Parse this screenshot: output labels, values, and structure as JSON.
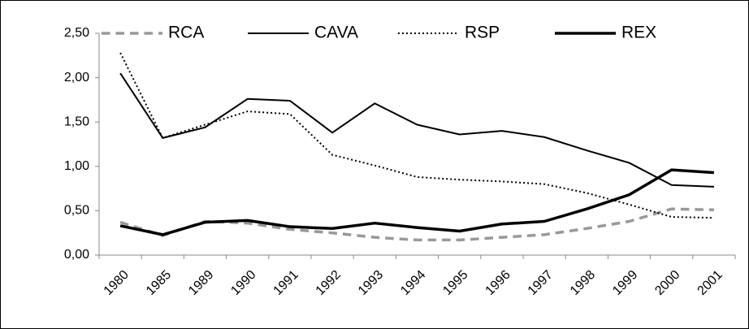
{
  "chart_data": {
    "type": "line",
    "categories": [
      "1980",
      "1985",
      "1989",
      "1990",
      "1991",
      "1992",
      "1993",
      "1994",
      "1995",
      "1996",
      "1997",
      "1998",
      "1999",
      "2000",
      "2001"
    ],
    "series": [
      {
        "name": "RCA",
        "color": "#999999",
        "line_style": "dashed",
        "line_width": 3.5,
        "values": [
          0.37,
          0.22,
          0.38,
          0.36,
          0.29,
          0.25,
          0.2,
          0.17,
          0.17,
          0.2,
          0.23,
          0.3,
          0.38,
          0.52,
          0.51
        ]
      },
      {
        "name": "CAVA",
        "color": "#000000",
        "line_style": "solid",
        "line_width": 2,
        "values": [
          2.05,
          1.32,
          1.44,
          1.76,
          1.74,
          1.38,
          1.71,
          1.47,
          1.36,
          1.4,
          1.33,
          1.18,
          1.04,
          0.79,
          0.77
        ]
      },
      {
        "name": "RSP",
        "color": "#000000",
        "line_style": "dotted",
        "line_width": 2,
        "values": [
          2.28,
          1.32,
          1.47,
          1.62,
          1.59,
          1.13,
          1.01,
          0.88,
          0.85,
          0.83,
          0.8,
          0.7,
          0.57,
          0.43,
          0.42
        ]
      },
      {
        "name": "REX",
        "color": "#000000",
        "line_style": "solid",
        "line_width": 3.5,
        "values": [
          0.33,
          0.23,
          0.37,
          0.39,
          0.32,
          0.3,
          0.36,
          0.31,
          0.27,
          0.35,
          0.38,
          0.52,
          0.68,
          0.96,
          0.93
        ]
      }
    ],
    "ylim": [
      0,
      2.5
    ],
    "yticks": [
      {
        "value": 0,
        "label": "0,00"
      },
      {
        "value": 0.5,
        "label": "0,50"
      },
      {
        "value": 1,
        "label": "1,00"
      },
      {
        "value": 1.5,
        "label": "1,50"
      },
      {
        "value": 2,
        "label": "2,00"
      },
      {
        "value": 2.5,
        "label": "2,50"
      }
    ],
    "grid": false,
    "legend": "top"
  }
}
